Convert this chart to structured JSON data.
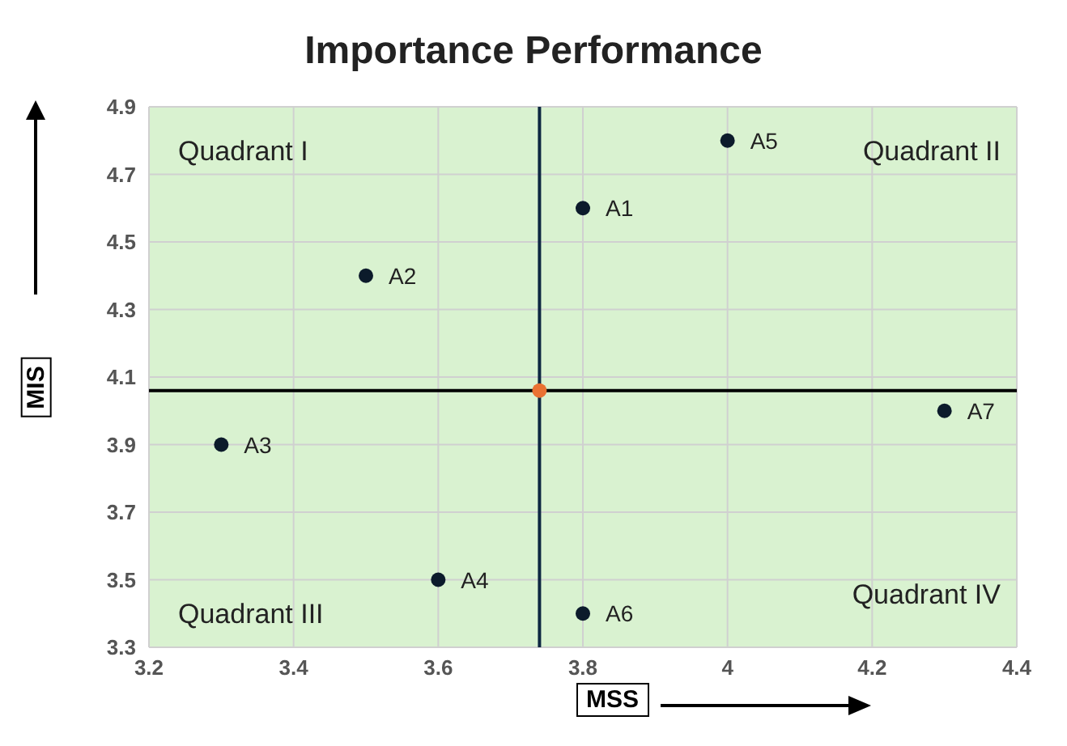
{
  "chart_data": {
    "type": "scatter",
    "title": "Importance Performance",
    "xlabel": "MSS",
    "ylabel": "MIS",
    "series": [
      {
        "x": [
          3.8,
          3.5,
          3.3,
          3.6,
          4.0,
          3.8,
          4.3
        ],
        "values": [
          4.6,
          4.4,
          3.9,
          3.5,
          4.8,
          3.4,
          4.0
        ],
        "color": "#0c1b2b",
        "value_labels": [
          "A1",
          "A2",
          "A3",
          "A4",
          "A5",
          "A6",
          "A7"
        ]
      },
      {
        "x": [
          3.74
        ],
        "values": [
          4.06
        ],
        "color": "#e97132"
      }
    ],
    "ref_lines": [
      {
        "axis": "x",
        "value": 3.74,
        "color": "#0e2841"
      },
      {
        "axis": "y",
        "value": 4.06,
        "color": "#000000"
      }
    ],
    "annotations": [
      "Quadrant I",
      "Quadrant II",
      "Quadrant III",
      "Quadrant IV"
    ],
    "xlim": [
      3.2,
      4.4
    ],
    "xticks": [
      3.2,
      3.4,
      3.6,
      3.8,
      4,
      4.2,
      4.4
    ],
    "ylim": [
      3.3,
      4.9
    ],
    "yticks": [
      3.3,
      3.5,
      3.7,
      3.9,
      4.1,
      4.3,
      4.5,
      4.7,
      4.9
    ],
    "grid": true,
    "marker": "circle"
  }
}
